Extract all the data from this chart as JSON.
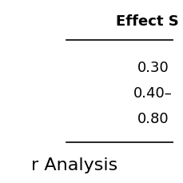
{
  "header": "Effect S",
  "rows": [
    "0.30",
    "0.40–",
    "0.80"
  ],
  "footer_text": "r Analysis",
  "bg_color": "#ffffff",
  "header_fontsize": 13,
  "row_fontsize": 13,
  "footer_fontsize": 16,
  "header_bold": true,
  "line_color": "#000000",
  "line_width": 1.2
}
